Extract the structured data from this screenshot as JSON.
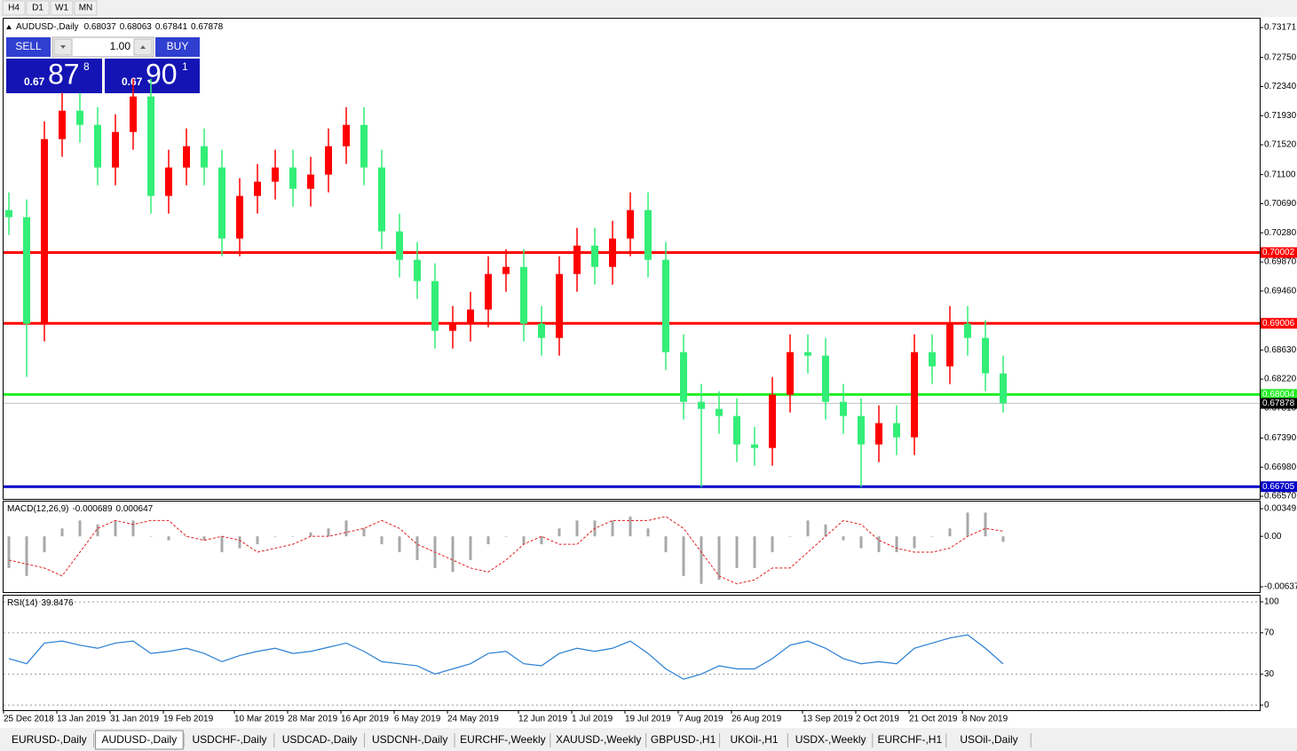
{
  "toolbar": {
    "timeframes": [
      "H4",
      "D1",
      "W1",
      "MN"
    ]
  },
  "header": {
    "symbol": "AUDUSD-,Daily",
    "ohlc": [
      0.68037,
      0.68063,
      0.67841,
      0.67878
    ]
  },
  "trade_panel": {
    "sell": "SELL",
    "buy": "BUY",
    "lot": "1.00",
    "sell_price": [
      "0.67",
      "87",
      "8"
    ],
    "buy_price": [
      "0.67",
      "90",
      "1"
    ]
  },
  "chart_data": [
    {
      "type": "candlestick",
      "up_color": "#ff0000",
      "down_color": "#33ee77",
      "ylim": [
        0.66533,
        0.73309
      ],
      "yticks": [
        0.73171,
        {
          "value": 0.7275,
          "label": "0.72750"
        },
        {
          "value": 0.7234,
          "label": "0.72340"
        },
        {
          "value": 0.7193,
          "label": "0.71930"
        },
        {
          "value": 0.7152,
          "label": "0.71520"
        },
        {
          "value": 0.711,
          "label": "0.71100"
        },
        {
          "value": 0.7069,
          "label": "0.70690"
        },
        {
          "value": 0.7028,
          "label": "0.70280"
        },
        {
          "value": 0.6987,
          "label": "0.69870"
        },
        {
          "value": 0.6946,
          "label": "0.69460"
        },
        {
          "value": 0.6863,
          "label": "0.68630"
        },
        {
          "value": 0.6822,
          "label": "0.68220"
        },
        {
          "value": 0.6781,
          "label": "0.67810"
        },
        {
          "value": 0.6739,
          "label": "0.67390"
        },
        {
          "value": 0.6698,
          "label": "0.66980"
        },
        {
          "value": 0.6657,
          "label": "0.66570"
        }
      ],
      "levels": [
        {
          "value": 0.70002,
          "color": "#ff0000"
        },
        {
          "value": 0.69006,
          "color": "#ff0000"
        },
        {
          "value": 0.68004,
          "color": "#22ee22"
        },
        {
          "value": 0.66705,
          "color": "#0000c8"
        },
        {
          "value": 0.67878,
          "color": "#c0c0c0",
          "label_color": "#000000"
        }
      ],
      "categories": [
        "25 Dec 2018",
        null,
        null,
        "13 Jan 2019",
        null,
        null,
        "31 Jan 2019",
        null,
        null,
        "19 Feb 2019",
        null,
        null,
        null,
        "10 Mar 2019",
        null,
        null,
        "28 Mar 2019",
        null,
        null,
        "16 Apr 2019",
        null,
        null,
        "6 May 2019",
        null,
        null,
        "24 May 2019",
        null,
        null,
        null,
        "12 Jun 2019",
        null,
        null,
        "1 Jul 2019",
        null,
        null,
        "19 Jul 2019",
        null,
        null,
        "7 Aug 2019",
        null,
        null,
        "26 Aug 2019",
        null,
        null,
        null,
        "13 Sep 2019",
        null,
        null,
        "2 Oct 2019",
        null,
        null,
        "21 Oct 2019",
        null,
        null,
        "8 Nov 2019",
        null,
        null
      ],
      "ohlc": [
        [
          0.706,
          0.7085,
          0.7025,
          0.705
        ],
        [
          0.705,
          0.7075,
          0.6825,
          0.69
        ],
        [
          0.69,
          0.7185,
          0.6875,
          0.716
        ],
        [
          0.716,
          0.7225,
          0.7135,
          0.72
        ],
        [
          0.72,
          0.7225,
          0.7155,
          0.718
        ],
        [
          0.718,
          0.7205,
          0.7095,
          0.712
        ],
        [
          0.712,
          0.7195,
          0.7095,
          0.717
        ],
        [
          0.717,
          0.7245,
          0.7145,
          0.722
        ],
        [
          0.722,
          0.7245,
          0.7055,
          0.708
        ],
        [
          0.708,
          0.7145,
          0.7055,
          0.712
        ],
        [
          0.712,
          0.7175,
          0.7095,
          0.715
        ],
        [
          0.715,
          0.7175,
          0.7095,
          0.712
        ],
        [
          0.712,
          0.7145,
          0.6995,
          0.702
        ],
        [
          0.702,
          0.7105,
          0.6995,
          0.708
        ],
        [
          0.708,
          0.7125,
          0.7055,
          0.71
        ],
        [
          0.71,
          0.7145,
          0.7075,
          0.712
        ],
        [
          0.712,
          0.7145,
          0.7065,
          0.709
        ],
        [
          0.709,
          0.7135,
          0.7065,
          0.711
        ],
        [
          0.711,
          0.7175,
          0.7085,
          0.715
        ],
        [
          0.715,
          0.7205,
          0.7125,
          0.718
        ],
        [
          0.718,
          0.7205,
          0.7095,
          0.712
        ],
        [
          0.712,
          0.7145,
          0.7005,
          0.703
        ],
        [
          0.703,
          0.7055,
          0.6965,
          0.699
        ],
        [
          0.699,
          0.7015,
          0.6935,
          0.696
        ],
        [
          0.696,
          0.6985,
          0.6865,
          0.689
        ],
        [
          0.689,
          0.6925,
          0.6865,
          0.69
        ],
        [
          0.69,
          0.6945,
          0.6875,
          0.692
        ],
        [
          0.692,
          0.6995,
          0.6895,
          0.697
        ],
        [
          0.697,
          0.7005,
          0.6945,
          0.698
        ],
        [
          0.698,
          0.7005,
          0.6875,
          0.69
        ],
        [
          0.69,
          0.6925,
          0.6855,
          0.688
        ],
        [
          0.688,
          0.6995,
          0.6855,
          0.697
        ],
        [
          0.697,
          0.7035,
          0.6945,
          0.701
        ],
        [
          0.701,
          0.7035,
          0.6955,
          0.698
        ],
        [
          0.698,
          0.7045,
          0.6955,
          0.702
        ],
        [
          0.702,
          0.7085,
          0.6995,
          0.706
        ],
        [
          0.706,
          0.7085,
          0.6965,
          0.699
        ],
        [
          0.699,
          0.7015,
          0.6835,
          0.686
        ],
        [
          0.686,
          0.6885,
          0.6765,
          0.679
        ],
        [
          0.679,
          0.6815,
          0.667,
          0.678
        ],
        [
          0.678,
          0.6805,
          0.6745,
          0.677
        ],
        [
          0.677,
          0.6795,
          0.6705,
          0.673
        ],
        [
          0.673,
          0.6755,
          0.67,
          0.6725
        ],
        [
          0.6725,
          0.6825,
          0.67,
          0.68
        ],
        [
          0.68,
          0.6885,
          0.6775,
          0.686
        ],
        [
          0.686,
          0.6885,
          0.683,
          0.6855
        ],
        [
          0.6855,
          0.688,
          0.6765,
          0.679
        ],
        [
          0.679,
          0.6815,
          0.6745,
          0.677
        ],
        [
          0.677,
          0.6795,
          0.667,
          0.673
        ],
        [
          0.673,
          0.6785,
          0.6705,
          0.676
        ],
        [
          0.676,
          0.6785,
          0.6715,
          0.674
        ],
        [
          0.674,
          0.6885,
          0.6715,
          0.686
        ],
        [
          0.686,
          0.6885,
          0.6815,
          0.684
        ],
        [
          0.684,
          0.6925,
          0.6815,
          0.69
        ],
        [
          0.69,
          0.6925,
          0.6855,
          0.688
        ],
        [
          0.688,
          0.6905,
          0.6805,
          0.683
        ],
        [
          0.683,
          0.6855,
          0.6775,
          0.67878
        ]
      ]
    },
    {
      "type": "macd",
      "title": "MACD(12,26,9)",
      "current": [
        -0.000689,
        0.000647
      ],
      "ylim": [
        -0.00704,
        0.00439
      ],
      "yticks": [
        0.00349,
        {
          "value": 0,
          "label": "0.00"
        },
        -0.00637
      ],
      "series": [
        {
          "type": "bar",
          "color": "#a8a8a8",
          "values": [
            -0.004,
            -0.005,
            -0.002,
            0.001,
            0.002,
            0.0015,
            0.002,
            0.002,
            0,
            -0.0005,
            0,
            -0.0005,
            -0.002,
            -0.0015,
            -0.001,
            0,
            0,
            0.0005,
            0.001,
            0.002,
            0.001,
            -0.001,
            -0.002,
            -0.003,
            -0.004,
            -0.0045,
            -0.003,
            -0.001,
            0,
            -0.001,
            -0.001,
            0.001,
            0.002,
            0.002,
            0.002,
            0.0025,
            0.001,
            -0.002,
            -0.005,
            -0.006,
            -0.0055,
            -0.004,
            -0.004,
            -0.002,
            0,
            0.002,
            0.0015,
            -0.0005,
            -0.0015,
            -0.002,
            -0.002,
            -0.0015,
            0,
            0.001,
            0.003,
            0.003,
            -0.000689
          ]
        },
        {
          "type": "line",
          "color": "#e02020",
          "values": [
            -0.003,
            -0.0035,
            -0.004,
            -0.005,
            -0.002,
            0.001,
            0.002,
            0.0015,
            0.002,
            0.002,
            0,
            -0.0005,
            0,
            -0.0005,
            -0.002,
            -0.0015,
            -0.001,
            0,
            0,
            0.0005,
            0.001,
            0.002,
            0.001,
            -0.001,
            -0.002,
            -0.003,
            -0.004,
            -0.0045,
            -0.003,
            -0.001,
            0,
            -0.001,
            -0.001,
            0.001,
            0.002,
            0.002,
            0.002,
            0.0025,
            0.001,
            -0.002,
            -0.005,
            -0.006,
            -0.0055,
            -0.004,
            -0.004,
            -0.002,
            0,
            0.002,
            0.0015,
            -0.0005,
            -0.0015,
            -0.002,
            -0.002,
            -0.0015,
            0,
            0.001,
            0.000647
          ]
        }
      ]
    },
    {
      "type": "line",
      "title": "RSI(14)",
      "current": 39.8476,
      "color": "#2a7fd4",
      "grid": true,
      "ylim": [
        -5,
        106
      ],
      "yticks": [
        100,
        70,
        30,
        0
      ],
      "values": [
        45,
        40,
        60,
        62,
        58,
        55,
        60,
        62,
        50,
        52,
        55,
        50,
        42,
        48,
        52,
        55,
        50,
        52,
        56,
        60,
        52,
        42,
        40,
        38,
        30,
        35,
        40,
        50,
        52,
        40,
        38,
        50,
        55,
        52,
        55,
        62,
        50,
        35,
        25,
        30,
        38,
        35,
        35,
        45,
        58,
        62,
        55,
        45,
        40,
        42,
        40,
        55,
        60,
        65,
        68,
        55,
        39.8476
      ]
    }
  ],
  "tabs": {
    "items": [
      "EURUSD-,Daily",
      "AUDUSD-,Daily",
      "USDCHF-,Daily",
      "USDCAD-,Daily",
      "USDCNH-,Daily",
      "EURCHF-,Weekly",
      "XAUUSD-,Weekly",
      "GBPUSD-,H1",
      "UKOil-,H1",
      "USDX-,Weekly",
      "EURCHF-,H1",
      "USOil-,Daily"
    ],
    "active": 1
  }
}
